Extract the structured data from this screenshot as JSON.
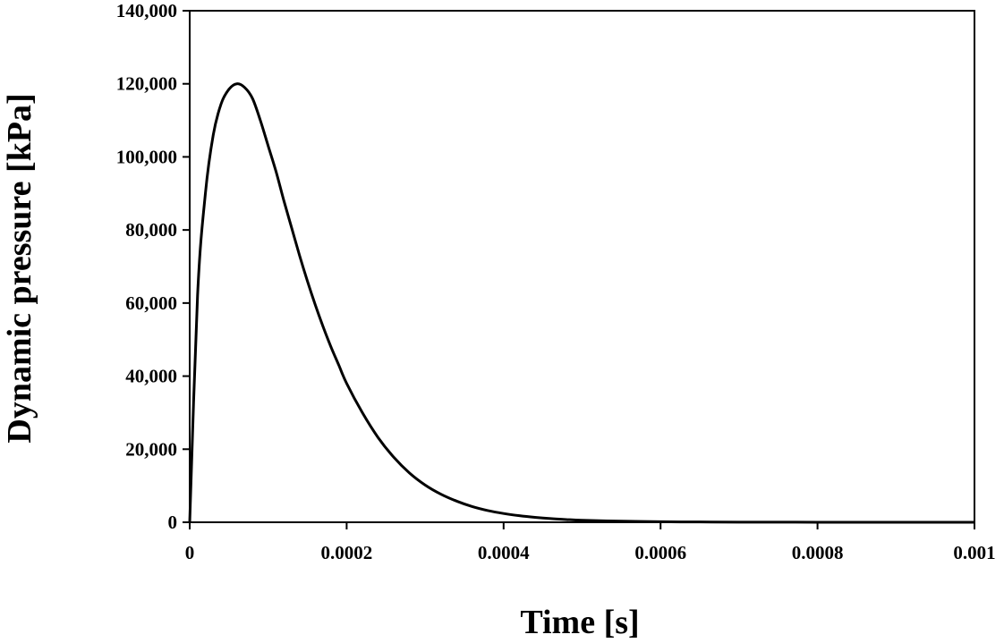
{
  "chart_data": {
    "type": "line",
    "xlabel": "Time [s]",
    "ylabel": "Dynamic pressure [kPa]",
    "xlim": [
      0,
      0.001
    ],
    "ylim": [
      0,
      140000
    ],
    "x_ticks": [
      "0",
      "0.0002",
      "0.0004",
      "0.0006",
      "0.0008",
      "0.001"
    ],
    "y_ticks": [
      "0",
      "20,000",
      "40,000",
      "60,000",
      "80,000",
      "100,000",
      "120,000",
      "140,000"
    ],
    "grid": false,
    "line_color": "#000000",
    "series": [
      {
        "x": [
          0,
          1e-05,
          2e-05,
          3e-05,
          4e-05,
          5e-05,
          6e-05,
          7e-05,
          8e-05,
          9e-05,
          0.0001,
          0.00011,
          0.00012,
          0.00013,
          0.00014,
          0.00015,
          0.00016,
          0.00017,
          0.00018,
          0.00019,
          0.0002,
          0.00022,
          0.00024,
          0.00026,
          0.00028,
          0.0003,
          0.00032,
          0.00034,
          0.00036,
          0.00038,
          0.0004,
          0.00042,
          0.00044,
          0.00046,
          0.00048,
          0.0005,
          0.00055,
          0.0006,
          0.00065,
          0.0007,
          0.0008,
          0.0009,
          0.001
        ],
        "y": [
          0,
          62000,
          90000,
          106000,
          114500,
          118500,
          120000,
          119000,
          116000,
          110000,
          103000,
          96000,
          88000,
          80500,
          73000,
          66000,
          59500,
          53500,
          48000,
          43000,
          38000,
          30000,
          23200,
          17800,
          13500,
          10200,
          7700,
          5800,
          4300,
          3200,
          2400,
          1800,
          1350,
          1000,
          750,
          550,
          300,
          150,
          80,
          40,
          10,
          3,
          0
        ]
      }
    ]
  }
}
